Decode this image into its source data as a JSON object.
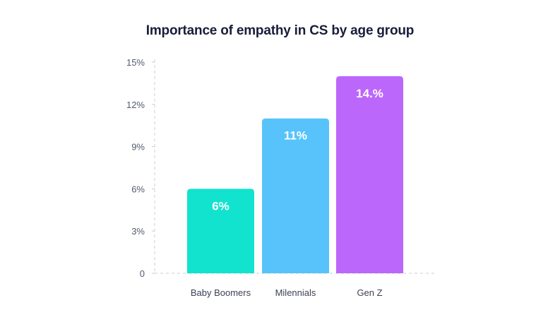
{
  "chart_data": {
    "type": "bar",
    "title": "Importance of empathy in CS by age group",
    "categories": [
      "Baby Boomers",
      "Milennials",
      "Gen Z"
    ],
    "values": [
      6,
      11,
      14
    ],
    "data_labels": [
      "6%",
      "11%",
      "14.%"
    ],
    "ylim": [
      0,
      15
    ],
    "yticks": [
      0,
      3,
      6,
      9,
      12,
      15
    ],
    "ytick_labels": [
      "0",
      "3%",
      "6%",
      "9%",
      "12%",
      "15%"
    ],
    "grid": false,
    "colors": [
      "#11e3cf",
      "#57c3fa",
      "#bc67fb"
    ]
  }
}
